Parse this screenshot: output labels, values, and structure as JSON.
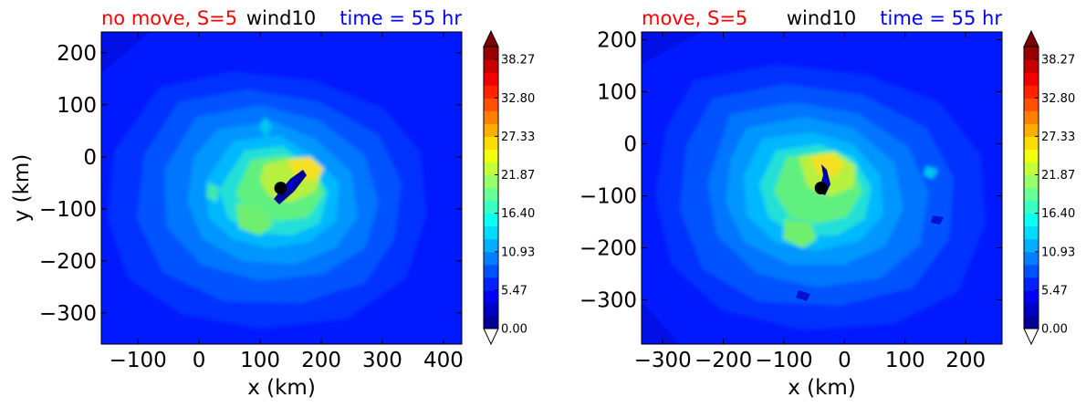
{
  "colors": {
    "red": "#ff0000",
    "blue": "#0000ff",
    "black": "#000000"
  },
  "chart_data": [
    {
      "type": "heatmap",
      "title_left": "no move, S=5",
      "title_center": "wind10",
      "title_right": "time = 55 hr",
      "xlabel": "x (km)",
      "ylabel": "y (km)",
      "xlim": [
        -160,
        430
      ],
      "ylim": [
        -360,
        240
      ],
      "xticks": [
        -100,
        0,
        100,
        200,
        300,
        400
      ],
      "xtick_labels": [
        "−100",
        "0",
        "100",
        "200",
        "300",
        "400"
      ],
      "yticks": [
        200,
        100,
        0,
        -100,
        -200,
        -300
      ],
      "ytick_labels": [
        "200",
        "100",
        "0",
        "−100",
        "−200",
        "−300"
      ],
      "center_marker": [
        130,
        -62
      ],
      "colorbar": {
        "min": 0,
        "max": 40.1,
        "tick_values": [
          0,
          5.47,
          10.93,
          16.4,
          21.87,
          27.33,
          32.8,
          38.27
        ],
        "tick_labels": [
          "0.00",
          "5.47",
          "10.93",
          "16.40",
          "21.87",
          "27.33",
          "32.80",
          "38.27"
        ],
        "extend": "both"
      }
    },
    {
      "type": "heatmap",
      "title_left": "move, S=5",
      "title_center": "wind10",
      "title_right": "time = 55 hr",
      "xlabel": "x (km)",
      "ylabel": "",
      "xlim": [
        -335,
        260
      ],
      "ylim": [
        -385,
        215
      ],
      "xticks": [
        -300,
        -200,
        -100,
        0,
        100,
        200
      ],
      "xtick_labels": [
        "−300",
        "−200",
        "−100",
        "0",
        "100",
        "200"
      ],
      "yticks": [
        200,
        100,
        0,
        -100,
        -200,
        -300
      ],
      "ytick_labels": [
        "200",
        "100",
        "0",
        "−100",
        "−200",
        "−300"
      ],
      "center_marker": [
        -35,
        -83
      ],
      "colorbar": {
        "min": 0,
        "max": 40.1,
        "tick_values": [
          0,
          5.47,
          10.93,
          16.4,
          21.87,
          27.33,
          32.8,
          38.27
        ],
        "tick_labels": [
          "0.00",
          "5.47",
          "10.93",
          "16.40",
          "21.87",
          "27.33",
          "32.80",
          "38.27"
        ],
        "extend": "both"
      }
    }
  ]
}
